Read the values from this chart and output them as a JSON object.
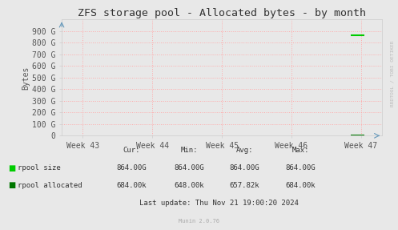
{
  "title": "ZFS storage pool - Allocated bytes - by month",
  "ylabel": "Bytes",
  "background_color": "#e8e8e8",
  "plot_bg_color": "#e8e8e8",
  "grid_color": "#ffaaaa",
  "grid_style": ":",
  "ylim": [
    0,
    1000000000000
  ],
  "yticks": [
    0,
    100000000000,
    200000000000,
    300000000000,
    400000000000,
    500000000000,
    600000000000,
    700000000000,
    800000000000,
    900000000000
  ],
  "ytick_labels": [
    "0",
    "100 G",
    "200 G",
    "300 G",
    "400 G",
    "500 G",
    "600 G",
    "700 G",
    "800 G",
    "900 G"
  ],
  "xtick_labels": [
    "Week 43",
    "Week 44",
    "Week 45",
    "Week 46",
    "Week 47"
  ],
  "xtick_positions": [
    0,
    1,
    2,
    3,
    4
  ],
  "series": [
    {
      "label": "rpool size",
      "color": "#00cc00",
      "data_x": [
        3.85,
        4.05
      ],
      "data_y": [
        864000000000,
        864000000000
      ],
      "linewidth": 1.5
    },
    {
      "label": "rpool allocated",
      "color": "#007700",
      "data_x": [
        3.85,
        4.05
      ],
      "data_y": [
        684000,
        684000
      ],
      "linewidth": 1.5
    }
  ],
  "legend_items": [
    {
      "label": "rpool size",
      "color": "#00cc00"
    },
    {
      "label": "rpool allocated",
      "color": "#007700"
    }
  ],
  "stats_header": [
    "Cur:",
    "Min:",
    "Avg:",
    "Max:"
  ],
  "stats": [
    [
      "864.00G",
      "864.00G",
      "864.00G",
      "864.00G"
    ],
    [
      "684.00k",
      "648.00k",
      "657.82k",
      "684.00k"
    ]
  ],
  "last_update": "Last update: Thu Nov 21 19:00:20 2024",
  "munin_version": "Munin 2.0.76",
  "watermark": "RRDTOOL / TOBI OETIKER",
  "title_fontsize": 9.5,
  "axis_label_fontsize": 7,
  "tick_fontsize": 7,
  "stats_fontsize": 6.5
}
